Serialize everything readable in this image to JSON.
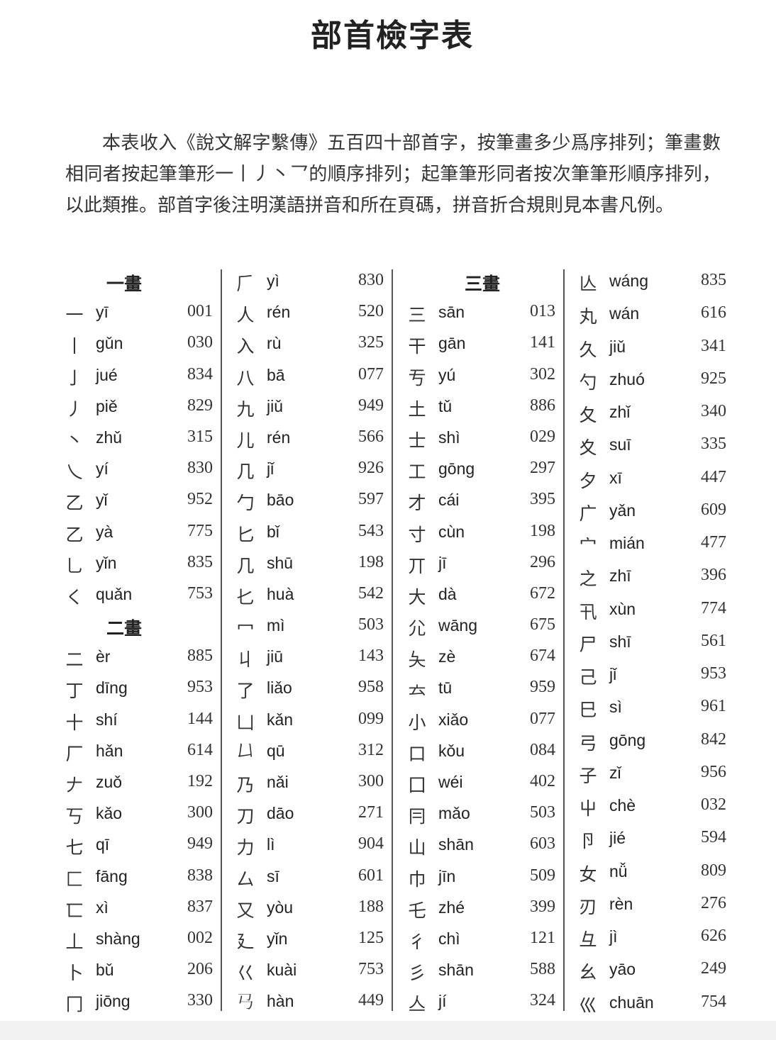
{
  "title": "部首檢字表",
  "intro": "本表收入《說文解字繫傳》五百四十部首字，按筆畫多少爲序排列；筆畫數相同者按起筆筆形一丨丿丶乛的順序排列；起筆筆形同者按次筆筆形順序排列，以此類推。部首字後注明漢語拼音和所在頁碼，拼音折合規則見本書凡例。",
  "columns": [
    [
      {
        "header": "一畫"
      },
      {
        "char": "一",
        "pinyin": "yī",
        "page": "001"
      },
      {
        "char": "丨",
        "pinyin": "gǔn",
        "page": "030"
      },
      {
        "char": "亅",
        "pinyin": "jué",
        "page": "834"
      },
      {
        "char": "丿",
        "pinyin": "piě",
        "page": "829"
      },
      {
        "char": "丶",
        "pinyin": "zhǔ",
        "page": "315"
      },
      {
        "char": "乀",
        "pinyin": "yí",
        "page": "830"
      },
      {
        "char": "乙",
        "pinyin": "yǐ",
        "page": "952"
      },
      {
        "char": "乙",
        "pinyin": "yà",
        "page": "775"
      },
      {
        "char": "乚",
        "pinyin": "yǐn",
        "page": "835"
      },
      {
        "char": "く",
        "pinyin": "quǎn",
        "page": "753"
      },
      {
        "header": "二畫"
      },
      {
        "char": "二",
        "pinyin": "èr",
        "page": "885"
      },
      {
        "char": "丁",
        "pinyin": "dīng",
        "page": "953"
      },
      {
        "char": "十",
        "pinyin": "shí",
        "page": "144"
      },
      {
        "char": "厂",
        "pinyin": "hǎn",
        "page": "614"
      },
      {
        "char": "𠂇",
        "pinyin": "zuǒ",
        "page": "192"
      },
      {
        "char": "丂",
        "pinyin": "kǎo",
        "page": "300"
      },
      {
        "char": "七",
        "pinyin": "qī",
        "page": "949"
      },
      {
        "char": "匚",
        "pinyin": "fāng",
        "page": "838"
      },
      {
        "char": "匸",
        "pinyin": "xì",
        "page": "837"
      },
      {
        "char": "丄",
        "pinyin": "shàng",
        "page": "002"
      },
      {
        "char": "卜",
        "pinyin": "bǔ",
        "page": "206"
      },
      {
        "char": "冂",
        "pinyin": "jiōng",
        "page": "330"
      }
    ],
    [
      {
        "char": "𠂆",
        "pinyin": "yì",
        "page": "830"
      },
      {
        "char": "人",
        "pinyin": "rén",
        "page": "520"
      },
      {
        "char": "入",
        "pinyin": "rù",
        "page": "325"
      },
      {
        "char": "八",
        "pinyin": "bā",
        "page": "077"
      },
      {
        "char": "九",
        "pinyin": "jiǔ",
        "page": "949"
      },
      {
        "char": "儿",
        "pinyin": "rén",
        "page": "566"
      },
      {
        "char": "几",
        "pinyin": "jǐ",
        "page": "926"
      },
      {
        "char": "勹",
        "pinyin": "bāo",
        "page": "597"
      },
      {
        "char": "匕",
        "pinyin": "bǐ",
        "page": "543"
      },
      {
        "char": "几",
        "pinyin": "shū",
        "page": "198"
      },
      {
        "char": "𠤎",
        "pinyin": "huà",
        "page": "542"
      },
      {
        "char": "冖",
        "pinyin": "mì",
        "page": "503"
      },
      {
        "char": "丩",
        "pinyin": "jiū",
        "page": "143"
      },
      {
        "char": "了",
        "pinyin": "liǎo",
        "page": "958"
      },
      {
        "char": "凵",
        "pinyin": "kǎn",
        "page": "099"
      },
      {
        "char": "𠙴",
        "pinyin": "qū",
        "page": "312"
      },
      {
        "char": "乃",
        "pinyin": "nǎi",
        "page": "300"
      },
      {
        "char": "刀",
        "pinyin": "dāo",
        "page": "271"
      },
      {
        "char": "力",
        "pinyin": "lì",
        "page": "904"
      },
      {
        "char": "厶",
        "pinyin": "sī",
        "page": "601"
      },
      {
        "char": "又",
        "pinyin": "yòu",
        "page": "188"
      },
      {
        "char": "廴",
        "pinyin": "yǐn",
        "page": "125"
      },
      {
        "char": "巜",
        "pinyin": "kuài",
        "page": "753"
      },
      {
        "char": "𢎘",
        "pinyin": "hàn",
        "page": "449"
      }
    ],
    [
      {
        "header": "三畫"
      },
      {
        "char": "三",
        "pinyin": "sān",
        "page": "013"
      },
      {
        "char": "干",
        "pinyin": "gān",
        "page": "141"
      },
      {
        "char": "亐",
        "pinyin": "yú",
        "page": "302"
      },
      {
        "char": "土",
        "pinyin": "tǔ",
        "page": "886"
      },
      {
        "char": "士",
        "pinyin": "shì",
        "page": "029"
      },
      {
        "char": "工",
        "pinyin": "gōng",
        "page": "297"
      },
      {
        "char": "才",
        "pinyin": "cái",
        "page": "395"
      },
      {
        "char": "寸",
        "pinyin": "cùn",
        "page": "198"
      },
      {
        "char": "丌",
        "pinyin": "jī",
        "page": "296"
      },
      {
        "char": "大",
        "pinyin": "dà",
        "page": "672"
      },
      {
        "char": "尣",
        "pinyin": "wāng",
        "page": "675"
      },
      {
        "char": "夨",
        "pinyin": "zè",
        "page": "674"
      },
      {
        "char": "𠫓",
        "pinyin": "tū",
        "page": "959"
      },
      {
        "char": "小",
        "pinyin": "xiǎo",
        "page": "077"
      },
      {
        "char": "口",
        "pinyin": "kǒu",
        "page": "084"
      },
      {
        "char": "囗",
        "pinyin": "wéi",
        "page": "402"
      },
      {
        "char": "冃",
        "pinyin": "mǎo",
        "page": "503"
      },
      {
        "char": "山",
        "pinyin": "shān",
        "page": "603"
      },
      {
        "char": "巾",
        "pinyin": "jīn",
        "page": "509"
      },
      {
        "char": "乇",
        "pinyin": "zhé",
        "page": "399"
      },
      {
        "char": "彳",
        "pinyin": "chì",
        "page": "121"
      },
      {
        "char": "彡",
        "pinyin": "shān",
        "page": "588"
      },
      {
        "char": "亼",
        "pinyin": "jí",
        "page": "324"
      }
    ],
    [
      {
        "char": "亾",
        "pinyin": "wáng",
        "page": "835"
      },
      {
        "char": "丸",
        "pinyin": "wán",
        "page": "616"
      },
      {
        "char": "久",
        "pinyin": "jiǔ",
        "page": "341"
      },
      {
        "char": "勺",
        "pinyin": "zhuó",
        "page": "925"
      },
      {
        "char": "夂",
        "pinyin": "zhǐ",
        "page": "340"
      },
      {
        "char": "夊",
        "pinyin": "suī",
        "page": "335"
      },
      {
        "char": "夕",
        "pinyin": "xī",
        "page": "447"
      },
      {
        "char": "广",
        "pinyin": "yǎn",
        "page": "609"
      },
      {
        "char": "宀",
        "pinyin": "mián",
        "page": "477"
      },
      {
        "char": "之",
        "pinyin": "zhī",
        "page": "396"
      },
      {
        "char": "卂",
        "pinyin": "xùn",
        "page": "774"
      },
      {
        "char": "尸",
        "pinyin": "shī",
        "page": "561"
      },
      {
        "char": "己",
        "pinyin": "jǐ",
        "page": "953"
      },
      {
        "char": "巳",
        "pinyin": "sì",
        "page": "961"
      },
      {
        "char": "弓",
        "pinyin": "gōng",
        "page": "842"
      },
      {
        "char": "子",
        "pinyin": "zǐ",
        "page": "956"
      },
      {
        "char": "屮",
        "pinyin": "chè",
        "page": "032"
      },
      {
        "char": "卪",
        "pinyin": "jié",
        "page": "594"
      },
      {
        "char": "女",
        "pinyin": "nǚ",
        "page": "809"
      },
      {
        "char": "刃",
        "pinyin": "rèn",
        "page": "276"
      },
      {
        "char": "彑",
        "pinyin": "jì",
        "page": "626"
      },
      {
        "char": "幺",
        "pinyin": "yāo",
        "page": "249"
      },
      {
        "char": "巛",
        "pinyin": "chuān",
        "page": "754"
      }
    ]
  ]
}
